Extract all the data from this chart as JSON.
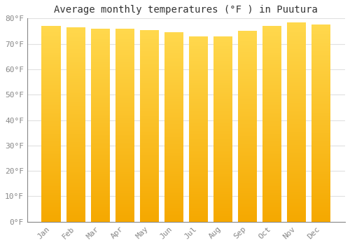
{
  "title": "Average monthly temperatures (°F ) in Puutura",
  "months": [
    "Jan",
    "Feb",
    "Mar",
    "Apr",
    "May",
    "Jun",
    "Jul",
    "Aug",
    "Sep",
    "Oct",
    "Nov",
    "Dec"
  ],
  "values": [
    77.0,
    76.5,
    76.0,
    76.0,
    75.5,
    74.5,
    73.0,
    73.0,
    75.0,
    77.0,
    78.5,
    77.5
  ],
  "bar_color_top": "#FFD84D",
  "bar_color_bottom": "#F5A800",
  "ylim": [
    0,
    80
  ],
  "yticks": [
    0,
    10,
    20,
    30,
    40,
    50,
    60,
    70,
    80
  ],
  "ytick_labels": [
    "0°F",
    "10°F",
    "20°F",
    "30°F",
    "40°F",
    "50°F",
    "60°F",
    "70°F",
    "80°F"
  ],
  "background_color": "#FFFFFF",
  "grid_color": "#E0E0E0",
  "title_fontsize": 10,
  "tick_fontsize": 8,
  "bar_width": 0.78,
  "n_grad": 200
}
